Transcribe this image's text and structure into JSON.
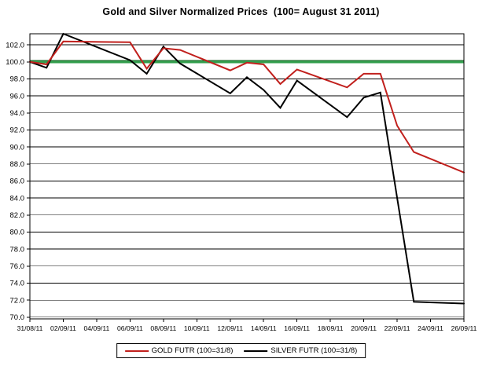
{
  "title": "Gold and Silver Normalized Prices  (100= August 31 2011)",
  "chart_data": {
    "type": "line",
    "title": "Gold and Silver Normalized Prices  (100= August 31 2011)",
    "xlabel": "",
    "ylabel": "",
    "x_is_dates": true,
    "x_tick_labels": [
      "31/08/11",
      "02/09/11",
      "04/09/11",
      "06/09/11",
      "08/09/11",
      "10/09/11",
      "12/09/11",
      "14/09/11",
      "16/09/11",
      "18/09/11",
      "20/09/11",
      "22/09/11",
      "24/09/11",
      "26/09/11"
    ],
    "x_tick_day_offsets": [
      0,
      2,
      4,
      6,
      8,
      10,
      12,
      14,
      16,
      18,
      20,
      22,
      24,
      26
    ],
    "y_tick_labels": [
      "70.0",
      "72.0",
      "74.0",
      "76.0",
      "78.0",
      "80.0",
      "82.0",
      "84.0",
      "86.0",
      "88.0",
      "90.0",
      "92.0",
      "94.0",
      "96.0",
      "98.0",
      "100.0",
      "102.0"
    ],
    "y_ticks": [
      70,
      72,
      74,
      76,
      78,
      80,
      82,
      84,
      86,
      88,
      90,
      92,
      94,
      96,
      98,
      100,
      102
    ],
    "ylim": [
      69.8,
      103.3
    ],
    "xlim_day_offsets": [
      0,
      26
    ],
    "grid": "horizontal",
    "grid_color": "#000000",
    "plot_border_color": "#000000",
    "background_color": "#ffffff",
    "reference_line": {
      "value": 100.0,
      "color": "#35a04f",
      "edge_color": "#14591f",
      "meaning": "baseline 100 = August 31 2011"
    },
    "point_dates": [
      "31/08/11",
      "01/09/11",
      "02/09/11",
      "06/09/11",
      "07/09/11",
      "08/09/11",
      "09/09/11",
      "12/09/11",
      "13/09/11",
      "14/09/11",
      "15/09/11",
      "16/09/11",
      "19/09/11",
      "20/09/11",
      "21/09/11",
      "22/09/11",
      "23/09/11",
      "26/09/11"
    ],
    "point_day_offsets": [
      0,
      1,
      2,
      6,
      7,
      8,
      9,
      12,
      13,
      14,
      15,
      16,
      19,
      20,
      21,
      22,
      23,
      26
    ],
    "series": [
      {
        "name": "GOLD  FUTR (100=31/8)",
        "color": "#c1201d",
        "values": [
          100.0,
          99.7,
          102.4,
          102.3,
          99.2,
          101.6,
          101.4,
          99.0,
          99.9,
          99.7,
          97.4,
          99.1,
          97.0,
          98.6,
          98.6,
          92.5,
          89.4,
          87.0
        ]
      },
      {
        "name": "SILVER  FUTR (100=31/8)",
        "color": "#000000",
        "values": [
          100.0,
          99.3,
          103.3,
          100.2,
          98.6,
          101.8,
          99.8,
          96.3,
          98.2,
          96.7,
          94.6,
          97.8,
          93.5,
          95.8,
          96.4,
          84.0,
          71.8,
          71.6
        ]
      }
    ],
    "legend_position": "bottom-center"
  }
}
